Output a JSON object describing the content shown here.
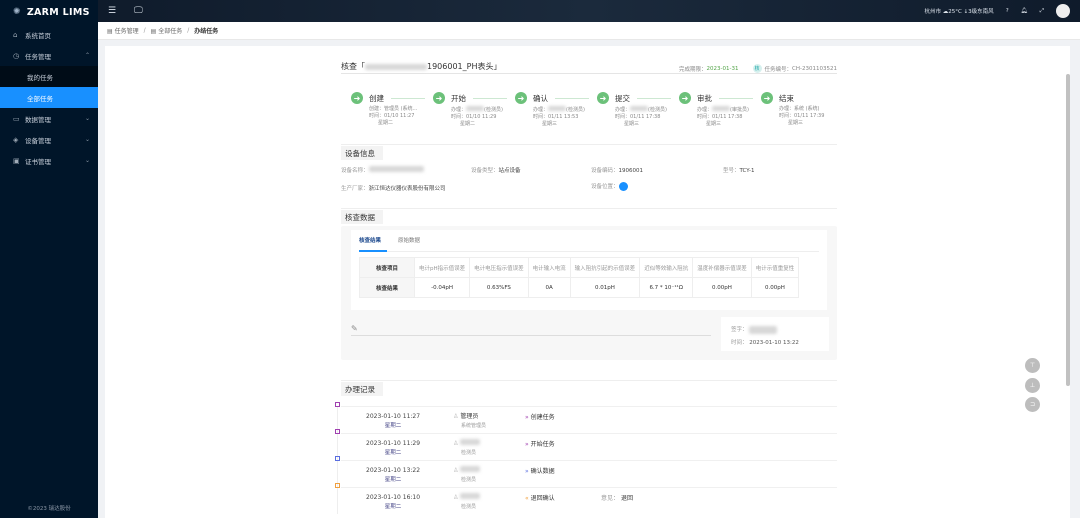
{
  "app": {
    "name": "ZARM LIMS",
    "footer": "©2023 瑞达股份"
  },
  "sidebar": {
    "items": [
      {
        "label": "系统首页",
        "icon": "home-icon"
      },
      {
        "label": "任务管理",
        "icon": "clock-icon",
        "expanded": true,
        "children": [
          {
            "label": "我的任务"
          },
          {
            "label": "全部任务",
            "active": true
          }
        ]
      },
      {
        "label": "数据管理",
        "icon": "database-icon"
      },
      {
        "label": "设备管理",
        "icon": "device-icon"
      },
      {
        "label": "证书管理",
        "icon": "certificate-icon"
      }
    ]
  },
  "topbar": {
    "city": "杭州市",
    "weather": "25°C",
    "weather_desc": "↓3级东南风"
  },
  "breadcrumb": [
    "任务管理",
    "全部任务",
    "办结任务"
  ],
  "task": {
    "title_prefix": "核查「",
    "title_suffix": "1906001_PH表头」",
    "deadline_label": "完成期限：",
    "deadline": "2023-01-31",
    "badge": "核",
    "number_label": "任务编号：",
    "number": "CH-2301103521"
  },
  "steps": [
    {
      "name": "创建",
      "handler_label": "创建：",
      "handler": "管理员 (系统...",
      "time": "时间：01/10 11:27",
      "weekday": "星期二"
    },
    {
      "name": "开始",
      "handler_label": "办理：",
      "handler": "(检测员)",
      "time": "时间：01/10 11:29",
      "weekday": "星期二"
    },
    {
      "name": "确认",
      "handler_label": "办理：",
      "handler": "(检测员)",
      "time": "时间：01/11 13:53",
      "weekday": "星期三"
    },
    {
      "name": "提交",
      "handler_label": "办理：",
      "handler": "(检测员)",
      "time": "时间：01/11 17:38",
      "weekday": "星期三"
    },
    {
      "name": "审批",
      "handler_label": "办理：",
      "handler": "(审批员)",
      "time": "时间：01/11 17:38",
      "weekday": "星期三"
    },
    {
      "name": "结束",
      "handler_label": "办理：",
      "handler": "系统 (系统)",
      "time": "时间：01/11 17:39",
      "weekday": "星期三"
    }
  ],
  "device": {
    "heading": "设备信息",
    "name_label": "设备名称：",
    "type_label": "设备类型：",
    "type": "站点设备",
    "code_label": "设备编码：",
    "code": "1906001",
    "model_label": "型号：",
    "model": "TCY-1",
    "maker_label": "生产厂家：",
    "maker": "浙江恒达仪器仪表股份有限公司",
    "location_label": "设备位置："
  },
  "check": {
    "heading": "核查数据",
    "tabs": [
      "核查结果",
      "原始数据"
    ],
    "active_tab": "核查结果",
    "row_headers": [
      "核查项目",
      "核查结果"
    ],
    "columns": [
      "电计pH指示值误差",
      "电计电压指示值误差",
      "电计输入电流",
      "输入阻抗引起的示值误差",
      "近似等效输入阻抗",
      "温度补偿器示值误差",
      "电计示值重复性"
    ],
    "values": [
      "-0.04pH",
      "0.63%FS",
      "0A",
      "0.01pH",
      "6.7 * 10⁻¹¹Ω",
      "0.00pH",
      "0.00pH"
    ],
    "sign_label": "签字：",
    "time_label": "时间：",
    "sign_time": "2023-01-10 13:22"
  },
  "records": {
    "heading": "办理记录",
    "opinion_label": "意见：",
    "items": [
      {
        "datetime": "2023-01-10 11:27",
        "weekday": "星期二",
        "user": "管理员",
        "role": "系统管理员",
        "action": "创建任务",
        "color": "#a040b0",
        "arrow": "»"
      },
      {
        "datetime": "2023-01-10 11:29",
        "weekday": "星期二",
        "user": "",
        "role": "检测员",
        "action": "开始任务",
        "color": "#a040b0",
        "arrow": "»"
      },
      {
        "datetime": "2023-01-10 13:22",
        "weekday": "星期二",
        "user": "",
        "role": "检测员",
        "action": "确认数据",
        "color": "#5a6ee0",
        "arrow": "»"
      },
      {
        "datetime": "2023-01-10 16:10",
        "weekday": "星期二",
        "user": "",
        "role": "检测员",
        "action": "退回确认",
        "color": "#f0a040",
        "arrow": "«",
        "opinion": "退回"
      }
    ]
  }
}
